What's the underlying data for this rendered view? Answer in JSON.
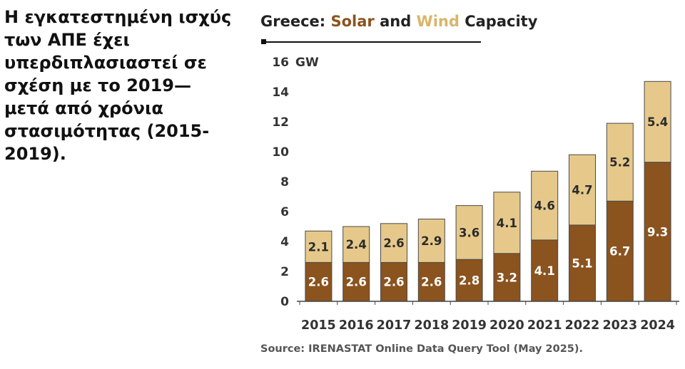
{
  "caption": {
    "lines": [
      "Η εγκατεστημένη ισχύς",
      "των ΑΠΕ έχει",
      "υπερδιπλασιαστεί σε",
      "σχέση με το 2019—",
      "μετά από χρόνια",
      "στασιμότητας (2015-",
      "2019)."
    ]
  },
  "chart_data": {
    "type": "bar",
    "stacked": true,
    "title_parts": {
      "prefix": "Greece: ",
      "solar": "Solar",
      "and": " and ",
      "wind": "Wind",
      "suffix": " Capacity"
    },
    "unit_label": "GW",
    "categories": [
      "2015",
      "2016",
      "2017",
      "2018",
      "2019",
      "2020",
      "2021",
      "2022",
      "2023",
      "2024"
    ],
    "series": [
      {
        "name": "Solar",
        "color": "#8B531E",
        "values": [
          2.6,
          2.6,
          2.6,
          2.6,
          2.8,
          3.2,
          4.1,
          5.1,
          6.7,
          9.3
        ]
      },
      {
        "name": "Wind",
        "color": "#E6C98A",
        "values": [
          2.1,
          2.4,
          2.6,
          2.9,
          3.6,
          4.1,
          4.6,
          4.7,
          5.2,
          5.4
        ]
      }
    ],
    "ylim": [
      0,
      16
    ],
    "yticks": [
      0,
      2,
      4,
      6,
      8,
      10,
      12,
      14,
      16
    ],
    "grid": false,
    "source": "Source: IRENASTAT Online Data Query Tool (May 2025)."
  }
}
